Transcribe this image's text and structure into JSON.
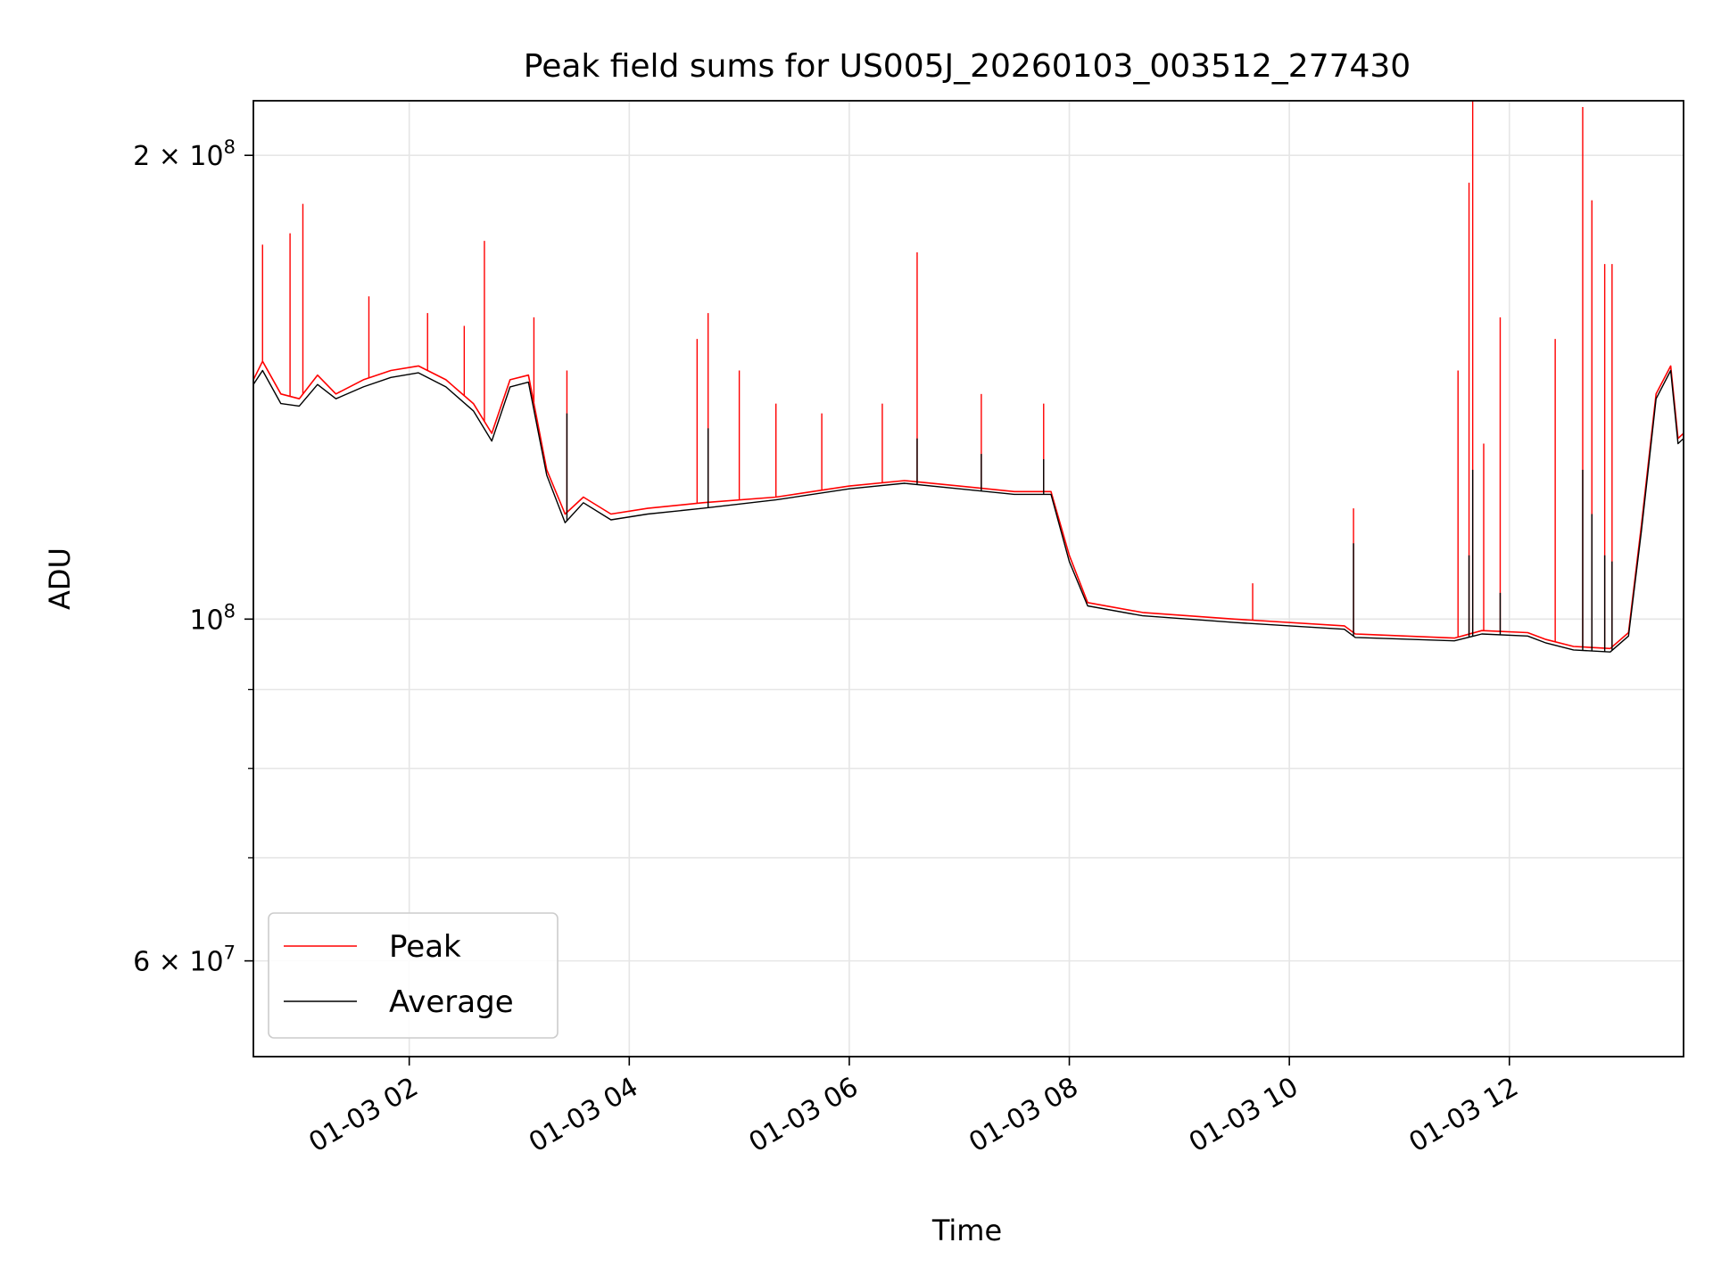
{
  "chart_data": {
    "type": "line",
    "title": "Peak field sums for US005J_20260103_003512_277430",
    "xlabel": "Time",
    "ylabel": "ADU",
    "yscale": "log",
    "xlim": [
      "2026-01-03 00:35",
      "2026-01-03 13:35"
    ],
    "ylim": [
      52000000,
      217000000
    ],
    "grid": true,
    "legend_position": "lower-left",
    "x_ticks": [
      "01-03 02",
      "01-03 04",
      "01-03 06",
      "01-03 08",
      "01-03 10",
      "01-03 12"
    ],
    "x_tick_times": [
      "2026-01-03 02:00",
      "2026-01-03 04:00",
      "2026-01-03 06:00",
      "2026-01-03 08:00",
      "2026-01-03 10:00",
      "2026-01-03 12:00"
    ],
    "y_major_ticks": [
      {
        "value": 60000000,
        "mantissa": "6",
        "exp": "7"
      },
      {
        "value": 100000000,
        "mantissa": "",
        "exp": "8"
      },
      {
        "value": 200000000,
        "mantissa": "2",
        "exp": "8"
      }
    ],
    "y_minor_gridlines": [
      70000000,
      80000000,
      90000000
    ],
    "series": [
      {
        "name": "Peak",
        "color": "#ff0000",
        "points": [
          [
            "2026-01-03 00:35",
            143000000
          ],
          [
            "2026-01-03 00:40",
            147000000
          ],
          [
            "2026-01-03 00:50",
            140000000
          ],
          [
            "2026-01-03 01:00",
            139000000
          ],
          [
            "2026-01-03 01:10",
            144000000
          ],
          [
            "2026-01-03 01:20",
            140000000
          ],
          [
            "2026-01-03 01:35",
            143000000
          ],
          [
            "2026-01-03 01:50",
            145000000
          ],
          [
            "2026-01-03 02:05",
            146000000
          ],
          [
            "2026-01-03 02:20",
            143000000
          ],
          [
            "2026-01-03 02:35",
            138000000
          ],
          [
            "2026-01-03 02:45",
            132000000
          ],
          [
            "2026-01-03 02:55",
            143000000
          ],
          [
            "2026-01-03 03:05",
            144000000
          ],
          [
            "2026-01-03 03:15",
            125000000
          ],
          [
            "2026-01-03 03:25",
            117000000
          ],
          [
            "2026-01-03 03:35",
            120000000
          ],
          [
            "2026-01-03 03:50",
            117000000
          ],
          [
            "2026-01-03 04:10",
            118000000
          ],
          [
            "2026-01-03 04:40",
            119000000
          ],
          [
            "2026-01-03 05:20",
            120000000
          ],
          [
            "2026-01-03 06:00",
            122000000
          ],
          [
            "2026-01-03 06:30",
            123000000
          ],
          [
            "2026-01-03 07:00",
            122000000
          ],
          [
            "2026-01-03 07:30",
            121000000
          ],
          [
            "2026-01-03 07:50",
            121000000
          ],
          [
            "2026-01-03 08:00",
            110000000
          ],
          [
            "2026-01-03 08:10",
            102500000
          ],
          [
            "2026-01-03 08:40",
            101000000
          ],
          [
            "2026-01-03 09:30",
            100000000
          ],
          [
            "2026-01-03 10:30",
            99000000
          ],
          [
            "2026-01-03 10:36",
            97800000
          ],
          [
            "2026-01-03 11:30",
            97200000
          ],
          [
            "2026-01-03 11:45",
            98300000
          ],
          [
            "2026-01-03 12:10",
            98000000
          ],
          [
            "2026-01-03 12:20",
            97000000
          ],
          [
            "2026-01-03 12:35",
            96000000
          ],
          [
            "2026-01-03 12:55",
            95700000
          ],
          [
            "2026-01-03 13:05",
            98000000
          ],
          [
            "2026-01-03 13:12",
            115000000
          ],
          [
            "2026-01-03 13:20",
            140000000
          ],
          [
            "2026-01-03 13:28",
            146000000
          ],
          [
            "2026-01-03 13:32",
            131000000
          ],
          [
            "2026-01-03 13:35",
            132000000
          ]
        ],
        "spikes": [
          [
            "2026-01-03 00:40",
            175000000
          ],
          [
            "2026-01-03 00:55",
            178000000
          ],
          [
            "2026-01-03 01:02",
            186000000
          ],
          [
            "2026-01-03 01:38",
            162000000
          ],
          [
            "2026-01-03 02:10",
            158000000
          ],
          [
            "2026-01-03 02:30",
            155000000
          ],
          [
            "2026-01-03 02:41",
            176000000
          ],
          [
            "2026-01-03 03:08",
            157000000
          ],
          [
            "2026-01-03 03:26",
            145000000
          ],
          [
            "2026-01-03 04:37",
            152000000
          ],
          [
            "2026-01-03 04:43",
            158000000
          ],
          [
            "2026-01-03 05:00",
            145000000
          ],
          [
            "2026-01-03 05:20",
            138000000
          ],
          [
            "2026-01-03 05:45",
            136000000
          ],
          [
            "2026-01-03 06:18",
            138000000
          ],
          [
            "2026-01-03 06:37",
            173000000
          ],
          [
            "2026-01-03 07:12",
            140000000
          ],
          [
            "2026-01-03 07:46",
            138000000
          ],
          [
            "2026-01-03 09:40",
            105500000
          ],
          [
            "2026-01-03 10:35",
            118000000
          ],
          [
            "2026-01-03 11:32",
            145000000
          ],
          [
            "2026-01-03 11:38",
            192000000
          ],
          [
            "2026-01-03 11:40",
            225000000
          ],
          [
            "2026-01-03 11:46",
            130000000
          ],
          [
            "2026-01-03 11:55",
            157000000
          ],
          [
            "2026-01-03 12:25",
            152000000
          ],
          [
            "2026-01-03 12:40",
            215000000
          ],
          [
            "2026-01-03 12:45",
            187000000
          ],
          [
            "2026-01-03 12:52",
            170000000
          ],
          [
            "2026-01-03 12:56",
            170000000
          ]
        ]
      },
      {
        "name": "Average",
        "color": "#000000",
        "points": [
          [
            "2026-01-03 00:35",
            142000000
          ],
          [
            "2026-01-03 00:40",
            145000000
          ],
          [
            "2026-01-03 00:50",
            138000000
          ],
          [
            "2026-01-03 01:00",
            137500000
          ],
          [
            "2026-01-03 01:10",
            142000000
          ],
          [
            "2026-01-03 01:20",
            139000000
          ],
          [
            "2026-01-03 01:35",
            141500000
          ],
          [
            "2026-01-03 01:50",
            143500000
          ],
          [
            "2026-01-03 02:05",
            144500000
          ],
          [
            "2026-01-03 02:20",
            141500000
          ],
          [
            "2026-01-03 02:35",
            136500000
          ],
          [
            "2026-01-03 02:45",
            130500000
          ],
          [
            "2026-01-03 02:55",
            141500000
          ],
          [
            "2026-01-03 03:05",
            142500000
          ],
          [
            "2026-01-03 03:15",
            124000000
          ],
          [
            "2026-01-03 03:25",
            115500000
          ],
          [
            "2026-01-03 03:35",
            119000000
          ],
          [
            "2026-01-03 03:50",
            116000000
          ],
          [
            "2026-01-03 04:10",
            117000000
          ],
          [
            "2026-01-03 04:40",
            118000000
          ],
          [
            "2026-01-03 05:20",
            119500000
          ],
          [
            "2026-01-03 06:00",
            121500000
          ],
          [
            "2026-01-03 06:30",
            122500000
          ],
          [
            "2026-01-03 07:00",
            121500000
          ],
          [
            "2026-01-03 07:30",
            120500000
          ],
          [
            "2026-01-03 07:50",
            120500000
          ],
          [
            "2026-01-03 08:00",
            109000000
          ],
          [
            "2026-01-03 08:10",
            102000000
          ],
          [
            "2026-01-03 08:40",
            100500000
          ],
          [
            "2026-01-03 09:30",
            99500000
          ],
          [
            "2026-01-03 10:30",
            98500000
          ],
          [
            "2026-01-03 10:36",
            97300000
          ],
          [
            "2026-01-03 11:30",
            96800000
          ],
          [
            "2026-01-03 11:45",
            97800000
          ],
          [
            "2026-01-03 12:10",
            97500000
          ],
          [
            "2026-01-03 12:20",
            96500000
          ],
          [
            "2026-01-03 12:35",
            95500000
          ],
          [
            "2026-01-03 12:55",
            95200000
          ],
          [
            "2026-01-03 13:05",
            97500000
          ],
          [
            "2026-01-03 13:12",
            114000000
          ],
          [
            "2026-01-03 13:20",
            139000000
          ],
          [
            "2026-01-03 13:28",
            145000000
          ],
          [
            "2026-01-03 13:32",
            130000000
          ],
          [
            "2026-01-03 13:35",
            131000000
          ]
        ],
        "spikes": [
          [
            "2026-01-03 03:26",
            136000000
          ],
          [
            "2026-01-03 04:43",
            133000000
          ],
          [
            "2026-01-03 06:37",
            131000000
          ],
          [
            "2026-01-03 07:12",
            128000000
          ],
          [
            "2026-01-03 07:46",
            127000000
          ],
          [
            "2026-01-03 10:35",
            112000000
          ],
          [
            "2026-01-03 11:38",
            110000000
          ],
          [
            "2026-01-03 11:40",
            125000000
          ],
          [
            "2026-01-03 11:55",
            104000000
          ],
          [
            "2026-01-03 12:40",
            125000000
          ],
          [
            "2026-01-03 12:45",
            117000000
          ],
          [
            "2026-01-03 12:52",
            110000000
          ],
          [
            "2026-01-03 12:56",
            109000000
          ]
        ]
      }
    ]
  }
}
